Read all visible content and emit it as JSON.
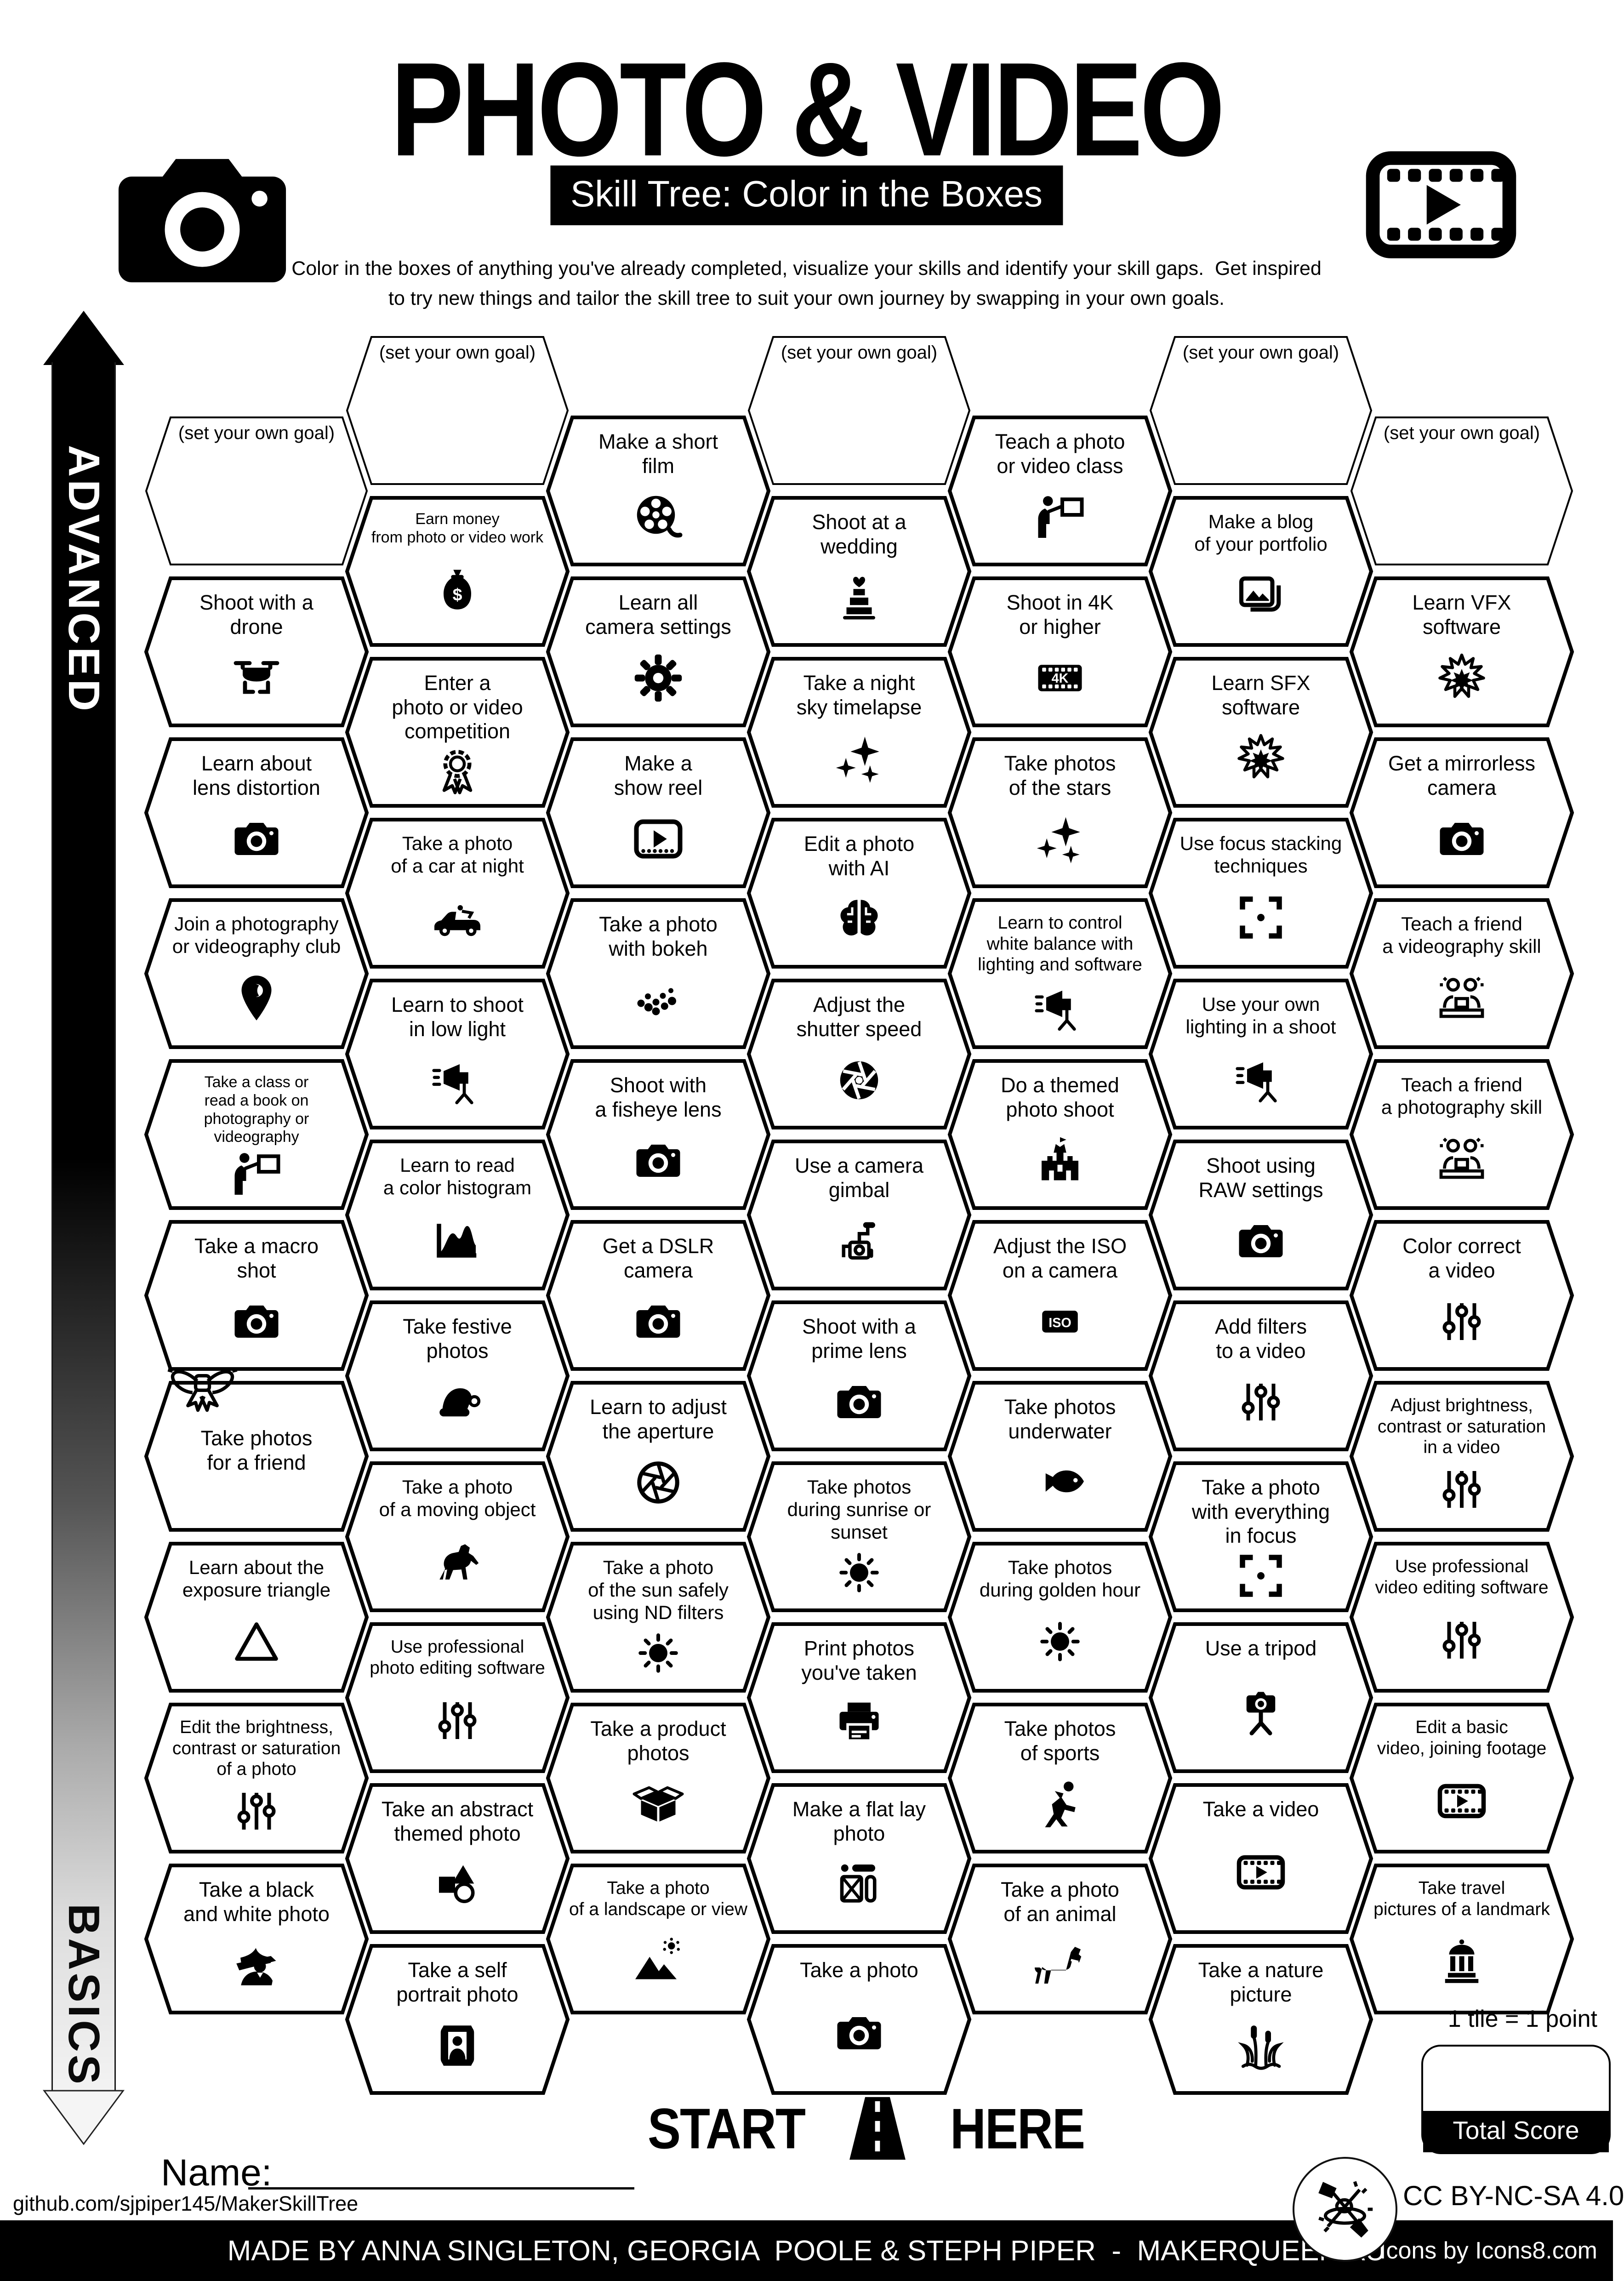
{
  "header": {
    "title": "PHOTO & VIDEO",
    "subtitle": "Skill Tree: Color in the Boxes",
    "description": "Color in the boxes of anything you've already completed, visualize your skills and identify your skill gaps.  Get inspired\nto try new things and tailor the skill tree to suit your own journey by swapping in your own goals.",
    "left_icon": "camera",
    "right_icon": "filmstrip"
  },
  "axis": {
    "top": "ADVANCED",
    "bottom": "BASICS"
  },
  "start": {
    "left": "START",
    "right": "HERE",
    "icon": "road"
  },
  "name_label": "Name:",
  "score": {
    "note": "1 tile = 1 point",
    "label": "Total Score"
  },
  "footer": {
    "github": "github.com/sjpiper145/MakerSkillTree",
    "license": "CC BY-NC-SA 4.0",
    "credit": "MADE BY ANNA SINGLETON, GEORGIA  POOLE & STEPH PIPER  -  MAKERQUEEN AU",
    "icons_credit": "Icons by Icons8.com"
  },
  "hexes": [
    {
      "col": 0,
      "row": 0,
      "label": "(set your own goal)",
      "icon": "",
      "goal": true
    },
    {
      "col": 0,
      "row": 1,
      "label": "Shoot with a\ndrone",
      "icon": "drone",
      "goal": false
    },
    {
      "col": 0,
      "row": 2,
      "label": "Learn about\nlens distortion",
      "icon": "camera",
      "goal": false
    },
    {
      "col": 0,
      "row": 3,
      "label": "Join a photography\nor videography club",
      "icon": "pin",
      "goal": false
    },
    {
      "col": 0,
      "row": 4,
      "label": "Take a class or\nread a book on\nphotography or videography",
      "icon": "presenter",
      "goal": false
    },
    {
      "col": 0,
      "row": 5,
      "label": "Take a macro\nshot",
      "icon": "camera",
      "goal": false
    },
    {
      "col": 0,
      "row": 6,
      "label": "Take photos\nfor a friend",
      "icon": "",
      "goal": false
    },
    {
      "col": 0,
      "row": 7,
      "label": "Learn about the\nexposure triangle",
      "icon": "triangle",
      "goal": false
    },
    {
      "col": 0,
      "row": 8,
      "label": "Edit the brightness,\ncontrast or saturation\nof a photo",
      "icon": "sliders",
      "goal": false
    },
    {
      "col": 0,
      "row": 9,
      "label": "Take a black\nand white photo",
      "icon": "fedora",
      "goal": false
    },
    {
      "col": 1,
      "row": 0,
      "label": "(set your own goal)",
      "icon": "",
      "goal": true
    },
    {
      "col": 1,
      "row": 1,
      "label": "Earn money\nfrom photo or video work",
      "icon": "moneybag",
      "goal": false
    },
    {
      "col": 1,
      "row": 2,
      "label": "Enter a\nphoto or video\ncompetition",
      "icon": "ribbon",
      "goal": false
    },
    {
      "col": 1,
      "row": 3,
      "label": "Take a photo\nof a car at night",
      "icon": "car",
      "goal": false
    },
    {
      "col": 1,
      "row": 4,
      "label": "Learn to shoot\nin low light",
      "icon": "studiolight",
      "goal": false
    },
    {
      "col": 1,
      "row": 5,
      "label": "Learn to read\na color histogram",
      "icon": "histogram",
      "goal": false
    },
    {
      "col": 1,
      "row": 6,
      "label": "Take festive\nphotos",
      "icon": "santahat",
      "goal": false
    },
    {
      "col": 1,
      "row": 7,
      "label": "Take a photo\nof a moving object",
      "icon": "horse",
      "goal": false
    },
    {
      "col": 1,
      "row": 8,
      "label": "Use professional\nphoto editing software",
      "icon": "sliders",
      "goal": false
    },
    {
      "col": 1,
      "row": 9,
      "label": "Take an abstract\nthemed photo",
      "icon": "shapes",
      "goal": false
    },
    {
      "col": 1,
      "row": 10,
      "label": "Take a self\nportrait photo",
      "icon": "portraitframe",
      "goal": false
    },
    {
      "col": 2,
      "row": 0,
      "label": "Make a short\nfilm",
      "icon": "filmreel",
      "goal": false
    },
    {
      "col": 2,
      "row": 1,
      "label": "Learn all\ncamera settings",
      "icon": "gear",
      "goal": false
    },
    {
      "col": 2,
      "row": 2,
      "label": "Make a\nshow reel",
      "icon": "videoframe",
      "goal": false
    },
    {
      "col": 2,
      "row": 3,
      "label": "Take a photo\nwith bokeh",
      "icon": "bokeh",
      "goal": false
    },
    {
      "col": 2,
      "row": 4,
      "label": "Shoot with\na fisheye lens",
      "icon": "camera",
      "goal": false
    },
    {
      "col": 2,
      "row": 5,
      "label": "Get a DSLR\ncamera",
      "icon": "camera",
      "goal": false
    },
    {
      "col": 2,
      "row": 6,
      "label": "Learn to adjust\nthe aperture",
      "icon": "aperture",
      "goal": false
    },
    {
      "col": 2,
      "row": 7,
      "label": "Take a photo\nof the sun safely\nusing ND filters",
      "icon": "sun",
      "goal": false
    },
    {
      "col": 2,
      "row": 8,
      "label": "Take a product\nphotos",
      "icon": "productbox",
      "goal": false
    },
    {
      "col": 2,
      "row": 9,
      "label": "Take a photo\nof a landscape or view",
      "icon": "mountain",
      "goal": false
    },
    {
      "col": 3,
      "row": 0,
      "label": "(set your own goal)",
      "icon": "",
      "goal": true
    },
    {
      "col": 3,
      "row": 1,
      "label": "Shoot at a\nwedding",
      "icon": "cake",
      "goal": false
    },
    {
      "col": 3,
      "row": 2,
      "label": "Take a night\nsky timelapse",
      "icon": "sparkles",
      "goal": false
    },
    {
      "col": 3,
      "row": 3,
      "label": "Edit a photo\nwith AI",
      "icon": "brain",
      "goal": false
    },
    {
      "col": 3,
      "row": 4,
      "label": "Adjust the\nshutter speed",
      "icon": "shutter",
      "goal": false
    },
    {
      "col": 3,
      "row": 5,
      "label": "Use a camera\ngimbal",
      "icon": "gimbal",
      "goal": false
    },
    {
      "col": 3,
      "row": 6,
      "label": "Shoot with a\nprime lens",
      "icon": "camera",
      "goal": false
    },
    {
      "col": 3,
      "row": 7,
      "label": "Take photos\nduring sunrise or\nsunset",
      "icon": "sun",
      "goal": false
    },
    {
      "col": 3,
      "row": 8,
      "label": "Print photos\nyou've taken",
      "icon": "printer",
      "goal": false
    },
    {
      "col": 3,
      "row": 9,
      "label": "Make a flat lay\nphoto",
      "icon": "flatlay",
      "goal": false
    },
    {
      "col": 3,
      "row": 10,
      "label": "Take a photo",
      "icon": "camera",
      "goal": false
    },
    {
      "col": 4,
      "row": 0,
      "label": "Teach a photo\nor video class",
      "icon": "presenter",
      "goal": false
    },
    {
      "col": 4,
      "row": 1,
      "label": "Shoot in 4K\nor higher",
      "icon": "fourk",
      "goal": false
    },
    {
      "col": 4,
      "row": 2,
      "label": "Take photos\nof the stars",
      "icon": "sparkles",
      "goal": false
    },
    {
      "col": 4,
      "row": 3,
      "label": "Learn to control\nwhite balance with\nlighting and software",
      "icon": "studiolight",
      "goal": false
    },
    {
      "col": 4,
      "row": 4,
      "label": "Do a themed\nphoto shoot",
      "icon": "castle",
      "goal": false
    },
    {
      "col": 4,
      "row": 5,
      "label": "Adjust the ISO\non a camera",
      "icon": "iso",
      "goal": false
    },
    {
      "col": 4,
      "row": 6,
      "label": "Take photos\nunderwater",
      "icon": "fish",
      "goal": false
    },
    {
      "col": 4,
      "row": 7,
      "label": "Take photos\nduring golden hour",
      "icon": "sun",
      "goal": false
    },
    {
      "col": 4,
      "row": 8,
      "label": "Take photos\nof sports",
      "icon": "runner",
      "goal": false
    },
    {
      "col": 4,
      "row": 9,
      "label": "Take a photo\nof an animal",
      "icon": "dog",
      "goal": false
    },
    {
      "col": 5,
      "row": 0,
      "label": "(set your own goal)",
      "icon": "",
      "goal": true
    },
    {
      "col": 5,
      "row": 1,
      "label": "Make a blog\nof your portfolio",
      "icon": "photostack",
      "goal": false
    },
    {
      "col": 5,
      "row": 2,
      "label": "Learn SFX\nsoftware",
      "icon": "explosion",
      "goal": false
    },
    {
      "col": 5,
      "row": 3,
      "label": "Use focus stacking\ntechniques",
      "icon": "focus",
      "goal": false
    },
    {
      "col": 5,
      "row": 4,
      "label": "Use your own\nlighting in a shoot",
      "icon": "studiolight",
      "goal": false
    },
    {
      "col": 5,
      "row": 5,
      "label": "Shoot using\nRAW settings",
      "icon": "camera",
      "goal": false
    },
    {
      "col": 5,
      "row": 6,
      "label": "Add filters\nto a video",
      "icon": "sliders",
      "goal": false
    },
    {
      "col": 5,
      "row": 7,
      "label": "Take a photo\nwith everything\nin focus",
      "icon": "focus",
      "goal": false
    },
    {
      "col": 5,
      "row": 8,
      "label": "Use a tripod",
      "icon": "tripod",
      "goal": false
    },
    {
      "col": 5,
      "row": 9,
      "label": "Take a video",
      "icon": "filmstrip",
      "goal": false
    },
    {
      "col": 5,
      "row": 10,
      "label": "Take a nature\npicture",
      "icon": "reeds",
      "goal": false
    },
    {
      "col": 6,
      "row": 0,
      "label": "(set your own goal)",
      "icon": "",
      "goal": true
    },
    {
      "col": 6,
      "row": 1,
      "label": "Learn VFX\nsoftware",
      "icon": "explosion",
      "goal": false
    },
    {
      "col": 6,
      "row": 2,
      "label": "Get a mirrorless\ncamera",
      "icon": "camera",
      "goal": false
    },
    {
      "col": 6,
      "row": 3,
      "label": "Teach a friend\na videography skill",
      "icon": "people",
      "goal": false
    },
    {
      "col": 6,
      "row": 4,
      "label": "Teach a friend\na photography skill",
      "icon": "people",
      "goal": false
    },
    {
      "col": 6,
      "row": 5,
      "label": "Color correct\na video",
      "icon": "sliders",
      "goal": false
    },
    {
      "col": 6,
      "row": 6,
      "label": "Adjust brightness,\ncontrast or saturation\nin a video",
      "icon": "sliders",
      "goal": false
    },
    {
      "col": 6,
      "row": 7,
      "label": "Use professional\nvideo editing software",
      "icon": "sliders",
      "goal": false
    },
    {
      "col": 6,
      "row": 8,
      "label": "Edit a basic\nvideo, joining footage",
      "icon": "filmstrip",
      "goal": false
    },
    {
      "col": 6,
      "row": 9,
      "label": "Take travel\npictures of a landmark",
      "icon": "landmark",
      "goal": false
    }
  ]
}
